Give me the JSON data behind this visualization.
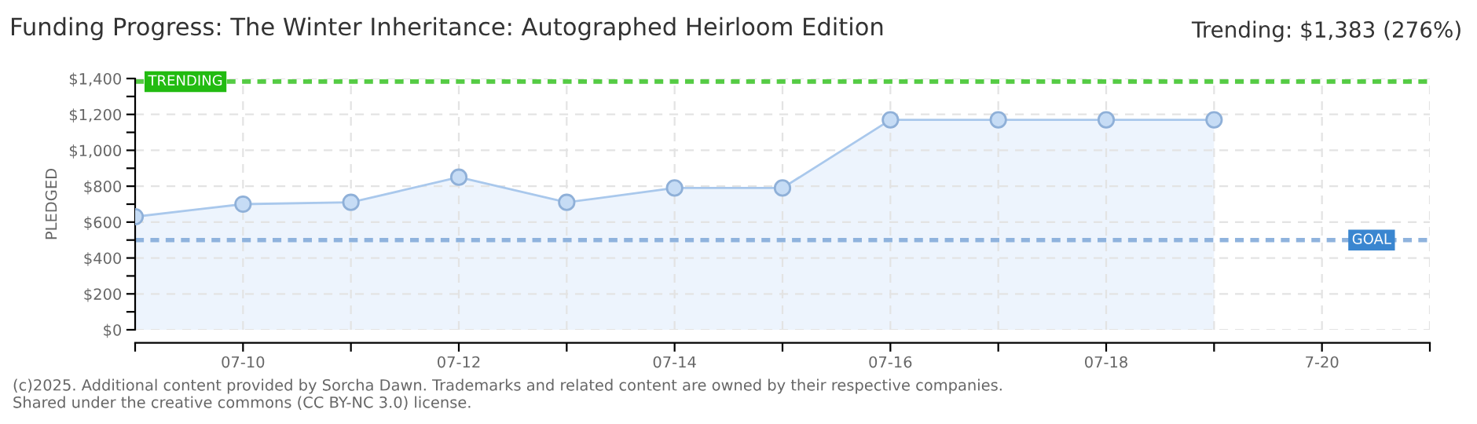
{
  "chart_data": {
    "type": "area",
    "title": "Funding Progress: The Winter Inheritance: Autographed Heirloom Edition",
    "ylabel": "PLEDGED",
    "x": [
      "2025-07-09",
      "2025-07-10",
      "2025-07-11",
      "2025-07-12",
      "2025-07-13",
      "2025-07-14",
      "2025-07-15",
      "2025-07-16",
      "2025-07-17",
      "2025-07-18",
      "2025-07-19"
    ],
    "series": [
      {
        "color": "#a9c8ec",
        "values": [
          630,
          700,
          710,
          850,
          710,
          790,
          790,
          1170,
          1170,
          1170,
          1170
        ]
      }
    ],
    "marker": "circle",
    "grid": true,
    "xlim": [
      "2025-07-09",
      "2025-07-21"
    ],
    "xticks": [
      {
        "value": "2025-07-09",
        "label": null
      },
      {
        "value": "2025-07-10",
        "label": "07-10"
      },
      {
        "value": "2025-07-11",
        "label": null
      },
      {
        "value": "2025-07-12",
        "label": "07-12"
      },
      {
        "value": "2025-07-13",
        "label": null
      },
      {
        "value": "2025-07-14",
        "label": "07-14"
      },
      {
        "value": "2025-07-15",
        "label": null
      },
      {
        "value": "2025-07-16",
        "label": "07-16"
      },
      {
        "value": "2025-07-17",
        "label": null
      },
      {
        "value": "2025-07-18",
        "label": "07-18"
      },
      {
        "value": "2025-07-19",
        "label": null
      },
      {
        "value": "2025-07-20",
        "label": "7-20"
      },
      {
        "value": "2025-07-21",
        "label": null
      }
    ],
    "ylim": [
      0,
      1400
    ],
    "yticks": [
      {
        "value": 0,
        "label": "$0"
      },
      {
        "value": 100,
        "label": null
      },
      {
        "value": 200,
        "label": "$200"
      },
      {
        "value": 300,
        "label": null
      },
      {
        "value": 400,
        "label": "$400"
      },
      {
        "value": 500,
        "label": null
      },
      {
        "value": 600,
        "label": "$600"
      },
      {
        "value": 700,
        "label": null
      },
      {
        "value": 800,
        "label": "$800"
      },
      {
        "value": 900,
        "label": null
      },
      {
        "value": 1000,
        "label": "$1,000"
      },
      {
        "value": 1100,
        "label": null
      },
      {
        "value": 1200,
        "label": "$1,200"
      },
      {
        "value": 1300,
        "label": null
      },
      {
        "value": 1400,
        "label": "$1,400"
      }
    ],
    "ref_lines": [
      {
        "axis": "y",
        "value": 1383,
        "label": "TRENDING",
        "color": "#55cc44",
        "line_style": "dotted"
      },
      {
        "axis": "y",
        "value": 500,
        "label": "GOAL",
        "color": "#8fb3dd",
        "line_style": "dotted"
      }
    ],
    "annotations": [
      "Trending: $1,383 (276%)",
      "(c)2025. Additional content provided by Sorcha Dawn. Trademarks and related content are owned by their respective companies.",
      "Shared under the creative commons (CC BY-NC 3.0) license."
    ]
  }
}
